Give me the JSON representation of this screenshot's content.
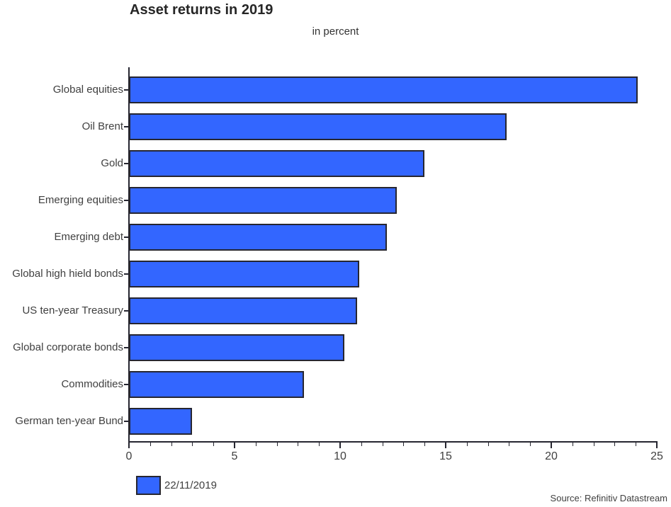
{
  "title": "Asset returns in 2019",
  "subtitle": "in percent",
  "source": "Source: Refinitiv Datastream",
  "legend": {
    "label": "22/11/2019",
    "swatch_color": "#3366ff"
  },
  "colors": {
    "bar_fill": "#3366ff",
    "bar_border": "#262630",
    "axis": "#262630",
    "label_text": "#404040",
    "title_text": "#262626"
  },
  "chart_data": {
    "type": "bar",
    "orientation": "horizontal",
    "title": "Asset returns in 2019",
    "subtitle": "in percent",
    "xlabel": "",
    "ylabel": "",
    "categories": [
      "Global equities",
      "Oil Brent",
      "Gold",
      "Emerging equities",
      "Emerging debt",
      "Global high hield bonds",
      "US ten-year Treasury",
      "Global corporate bonds",
      "Commodities",
      "German ten-year Bund"
    ],
    "series": [
      {
        "name": "22/11/2019",
        "values": [
          24.1,
          17.9,
          14.0,
          12.7,
          12.2,
          10.9,
          10.8,
          10.2,
          8.3,
          3.0
        ]
      }
    ],
    "xlim": [
      0,
      25
    ],
    "x_major_ticks": [
      0,
      5,
      10,
      15,
      20,
      25
    ],
    "x_minor_tick_step": 1,
    "grid": false,
    "legend_position": "bottom-left",
    "legend_entries": [
      "22/11/2019"
    ]
  }
}
